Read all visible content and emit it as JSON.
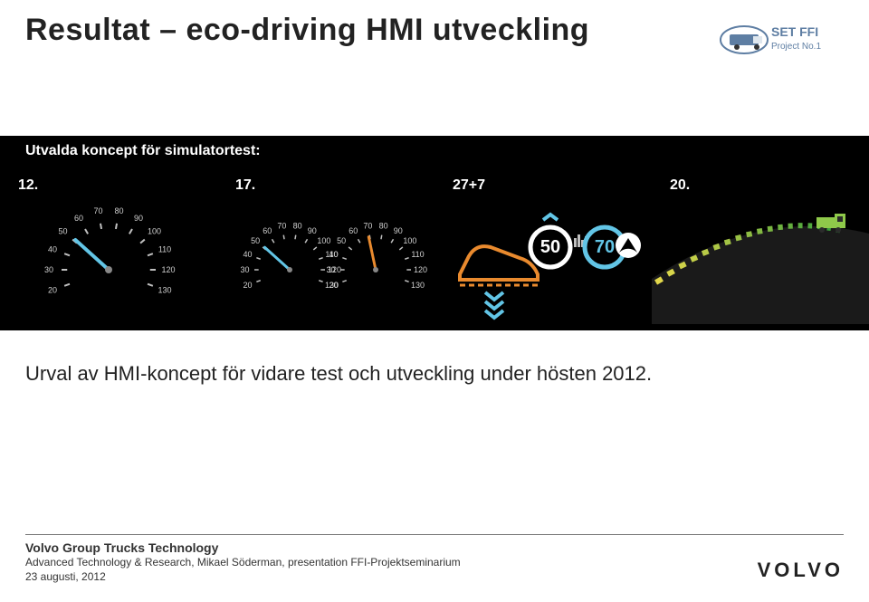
{
  "title": "Resultat – eco-driving HMI utveckling",
  "badge": {
    "line1": "SET FFI",
    "line2": "Project No.1",
    "color": "#5e7ea3"
  },
  "band_heading": "Utvalda koncept för simulatortest:",
  "concepts": [
    {
      "label": "12."
    },
    {
      "label": "17."
    },
    {
      "label": "27+7"
    },
    {
      "label": "20."
    }
  ],
  "gauge": {
    "ticks": [
      "20",
      "30",
      "40",
      "50",
      "60",
      "70",
      "80",
      "90",
      "100",
      "110",
      "120",
      "130"
    ],
    "needle_main": {
      "color": "#62c5e6",
      "angle_deg": -48
    },
    "needle_alt": {
      "color": "#e98a2e",
      "angle_deg": -12
    },
    "tick_color": "#bfbfbf"
  },
  "concept3": {
    "left_num": "50",
    "right_num": "70",
    "shoe_outline": "#e98a2e",
    "blue": "#62c5e6",
    "ring_white": "#ffffff"
  },
  "concept4": {
    "road_segments": 18,
    "gradient_from": "#2f9d3a",
    "gradient_to": "#e2d84b",
    "truck_color": "#8fc94a",
    "hill_color": "#1f1f1f"
  },
  "description": "Urval av HMI-koncept för vidare test och utveckling under hösten 2012.",
  "footer": {
    "bold": "Volvo Group Trucks Technology",
    "line": "Advanced Technology & Research, Mikael Söderman, presentation FFI-Projektseminarium",
    "date": "23 augusti, 2012",
    "logo_text": "VOLVO"
  }
}
